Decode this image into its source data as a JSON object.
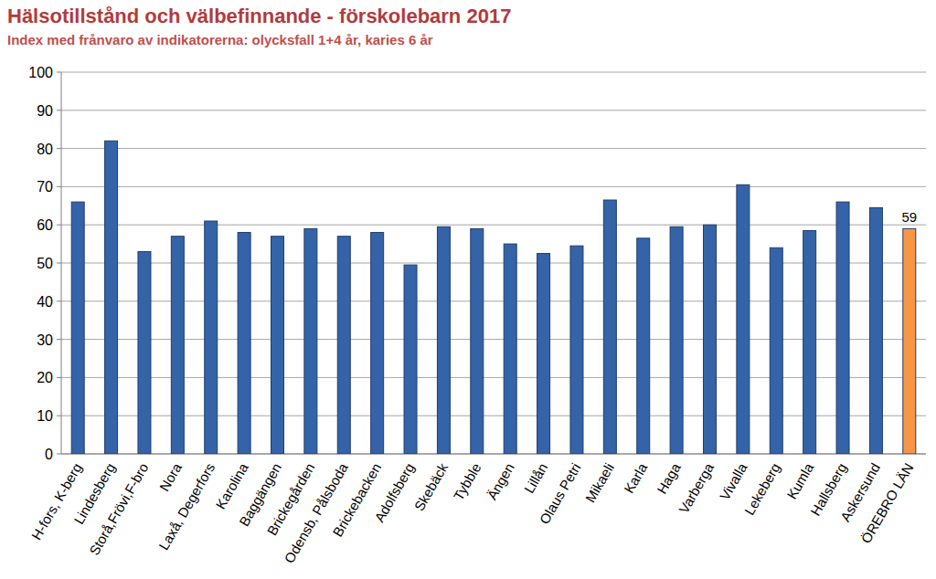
{
  "chart_data": {
    "type": "bar",
    "title": "Hälsotillstånd och välbefinnande - förskolebarn 2017",
    "subtitle": "Index med frånvaro av indikatorerna: olycksfall 1+4 år, karies 6 år",
    "categories": [
      "H-fors, K-berg",
      "Lindesberg",
      "Storå,Frövi,F-bro",
      "Nora",
      "Laxå, Degerfors",
      "Karolina",
      "Baggängen",
      "Brickegården",
      "Odensb, Pålsboda",
      "Brickebacken",
      "Adolfsberg",
      "Skebäck",
      "Tybble",
      "Ängen",
      "Lillån",
      "Olaus Petri",
      "Mikaeli",
      "Karla",
      "Haga",
      "Varberga",
      "Vivalla",
      "Lekeberg",
      "Kumla",
      "Hallsberg",
      "Askersund",
      "ÖREBRO LÄN"
    ],
    "values": [
      66,
      82,
      53,
      57,
      61,
      58,
      57,
      59,
      57,
      58,
      49.5,
      59.5,
      59,
      55,
      52.5,
      54.5,
      66.5,
      56.5,
      59.5,
      60,
      70.5,
      54,
      58.5,
      66,
      64.5,
      59
    ],
    "value_labels": [
      null,
      null,
      null,
      null,
      null,
      null,
      null,
      null,
      null,
      null,
      null,
      null,
      null,
      null,
      null,
      null,
      null,
      null,
      null,
      null,
      null,
      null,
      null,
      null,
      null,
      "59"
    ],
    "colors": [
      "#3563a8",
      "#3563a8",
      "#3563a8",
      "#3563a8",
      "#3563a8",
      "#3563a8",
      "#3563a8",
      "#3563a8",
      "#3563a8",
      "#3563a8",
      "#3563a8",
      "#3563a8",
      "#3563a8",
      "#3563a8",
      "#3563a8",
      "#3563a8",
      "#3563a8",
      "#3563a8",
      "#3563a8",
      "#3563a8",
      "#3563a8",
      "#3563a8",
      "#3563a8",
      "#3563a8",
      "#3563a8",
      "#f79646"
    ],
    "ylim": [
      0,
      100
    ],
    "yticks": [
      0,
      10,
      20,
      30,
      40,
      50,
      60,
      70,
      80,
      90,
      100
    ],
    "grid": true
  }
}
